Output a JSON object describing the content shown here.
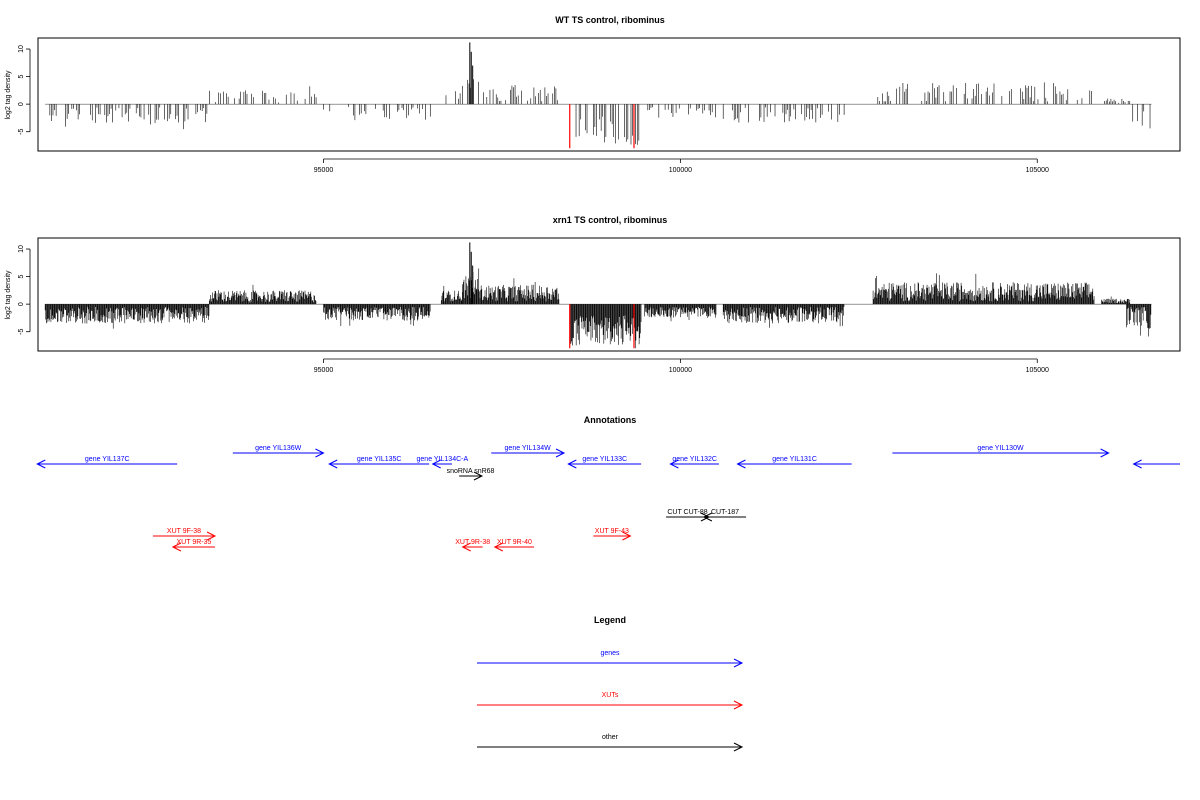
{
  "colors": {
    "gene": "#0000ff",
    "xut": "#ff0000",
    "other": "#000000",
    "highlight": "#ff0000",
    "bars": "#000000"
  },
  "chart_data": [
    {
      "type": "bar",
      "title": "WT TS control, ribominus",
      "ylabel": "log2 tag density",
      "xlim": [
        91000,
        107000
      ],
      "ylim": [
        -8.5,
        12
      ],
      "yticks": [
        -5,
        0,
        5,
        10
      ],
      "xticks": [
        95000,
        100000,
        105000
      ],
      "grid": false,
      "density": "low",
      "highlights": [
        {
          "x": 98450,
          "y": -8
        },
        {
          "x": 99350,
          "y": -8
        }
      ]
    },
    {
      "type": "bar",
      "title": "xrn1 TS control, ribominus",
      "ylabel": "log2 tag density",
      "xlim": [
        91000,
        107000
      ],
      "ylim": [
        -8.5,
        12
      ],
      "yticks": [
        -5,
        0,
        5,
        10
      ],
      "xticks": [
        95000,
        100000,
        105000
      ],
      "grid": false,
      "density": "high",
      "highlights": [
        {
          "x": 98450,
          "y": -8
        },
        {
          "x": 99350,
          "y": -8
        }
      ]
    }
  ],
  "annotations": {
    "title": "Annotations",
    "items": [
      {
        "label": "gene YIL137C",
        "kind": "gene",
        "strand": "-",
        "start": 90990,
        "end": 92950,
        "row": 1
      },
      {
        "label": "gene YIL136W",
        "kind": "gene",
        "strand": "+",
        "start": 93730,
        "end": 95000,
        "row": 0
      },
      {
        "label": "gene YIL135C",
        "kind": "gene",
        "strand": "-",
        "start": 95080,
        "end": 96480,
        "row": 1
      },
      {
        "label": "gene YIL134C-A",
        "kind": "gene",
        "strand": "-",
        "start": 96530,
        "end": 96800,
        "row": 1
      },
      {
        "label": "snoRNA snR68",
        "kind": "other",
        "strand": "+",
        "start": 96900,
        "end": 97220,
        "row": 2
      },
      {
        "label": "gene YIL134W",
        "kind": "gene",
        "strand": "+",
        "start": 97350,
        "end": 98370,
        "row": 0
      },
      {
        "label": "gene YIL133C",
        "kind": "gene",
        "strand": "-",
        "start": 98430,
        "end": 99450,
        "row": 1
      },
      {
        "label": "gene YIL132C",
        "kind": "gene",
        "strand": "-",
        "start": 99860,
        "end": 100540,
        "row": 1
      },
      {
        "label": "gene YIL131C",
        "kind": "gene",
        "strand": "-",
        "start": 100800,
        "end": 102400,
        "row": 1
      },
      {
        "label": "gene YIL130W",
        "kind": "gene",
        "strand": "+",
        "start": 102970,
        "end": 106000,
        "row": 0
      },
      {
        "label": "",
        "kind": "gene",
        "strand": "-",
        "start": 106350,
        "end": 107000,
        "row": 1
      },
      {
        "label": "CUT CUT-88",
        "kind": "other",
        "strand": "+",
        "start": 99800,
        "end": 100400,
        "row": 3
      },
      {
        "label": "CUT-187",
        "kind": "other",
        "strand": "-",
        "start": 100330,
        "end": 100920,
        "row": 3
      },
      {
        "label": "XUT 9F-38",
        "kind": "xut",
        "strand": "+",
        "start": 92610,
        "end": 93480,
        "row": 4
      },
      {
        "label": "XUT 9R-35",
        "kind": "xut",
        "strand": "-",
        "start": 92890,
        "end": 93480,
        "row": 5
      },
      {
        "label": "XUT 9R-38",
        "kind": "xut",
        "strand": "-",
        "start": 96950,
        "end": 97230,
        "row": 5
      },
      {
        "label": "XUT 9R-40",
        "kind": "xut",
        "strand": "-",
        "start": 97400,
        "end": 97950,
        "row": 5
      },
      {
        "label": "XUT 9F-43",
        "kind": "xut",
        "strand": "+",
        "start": 98780,
        "end": 99300,
        "row": 4
      }
    ]
  },
  "legend": {
    "title": "Legend",
    "entries": [
      {
        "label": "genes",
        "kind": "gene"
      },
      {
        "label": "XUTs",
        "kind": "xut"
      },
      {
        "label": "other",
        "kind": "other"
      }
    ]
  }
}
